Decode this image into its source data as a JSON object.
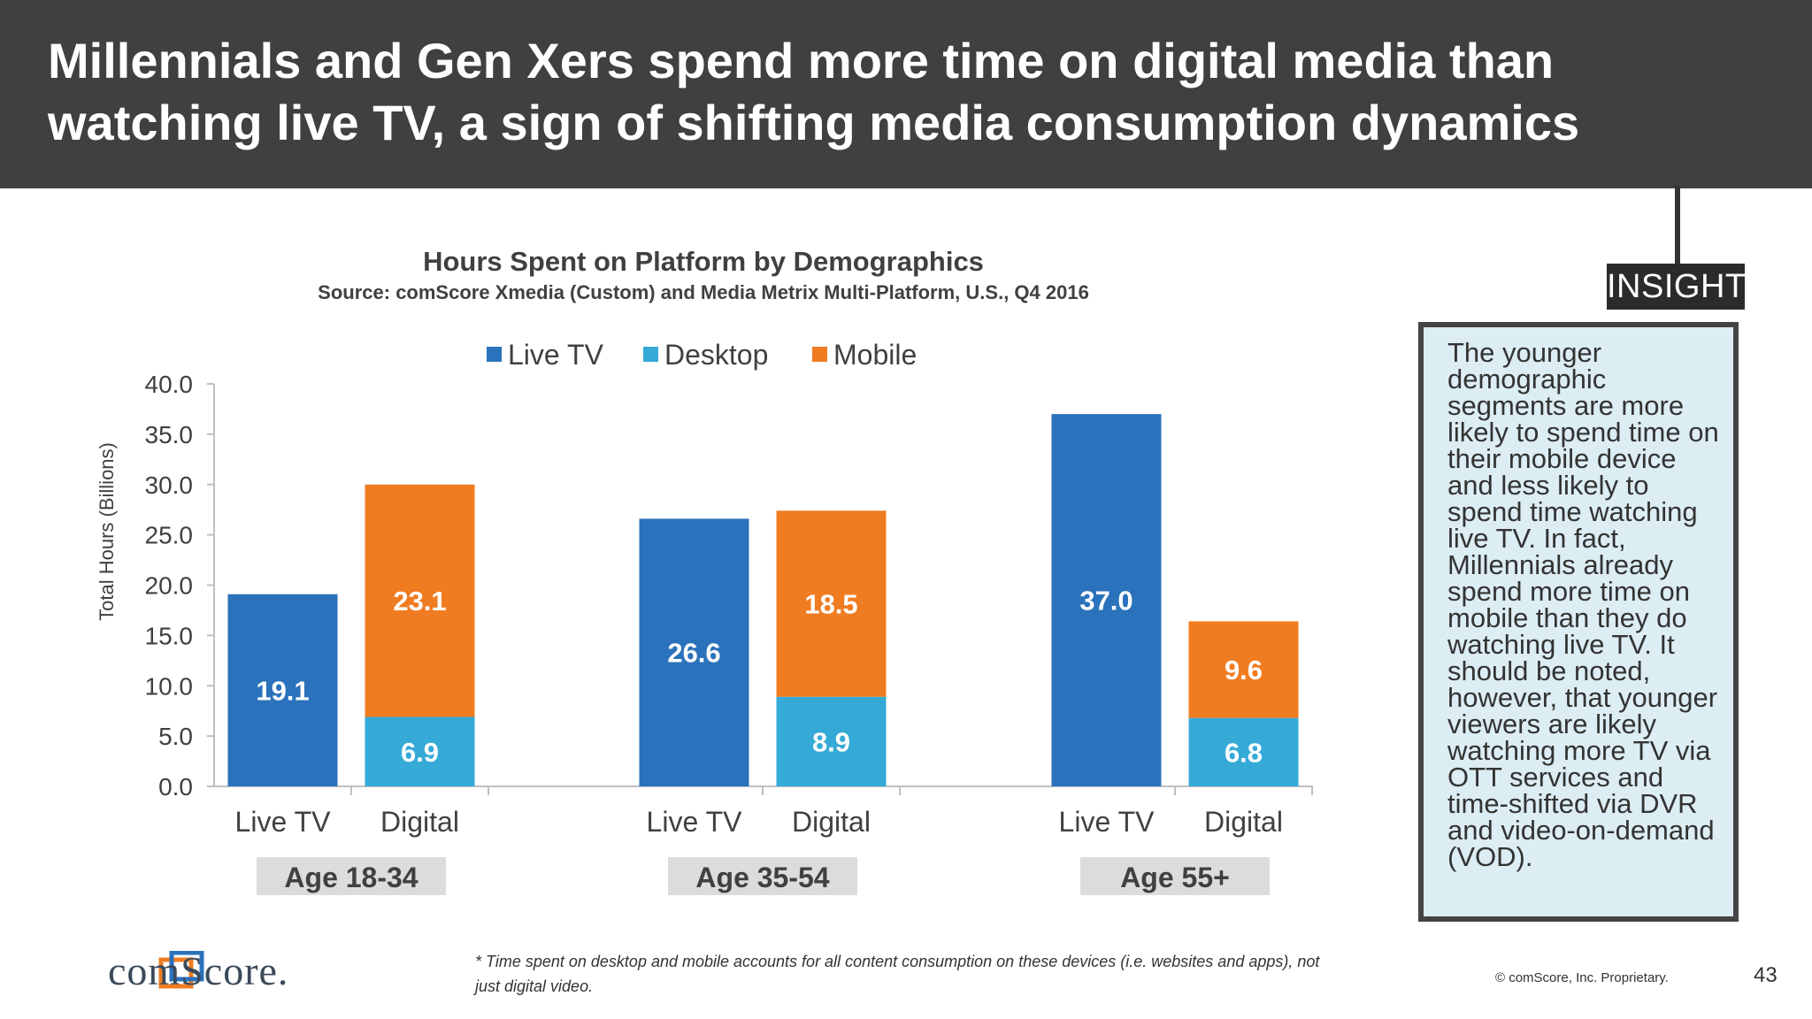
{
  "header": {
    "title_line1": "Millennials and Gen Xers spend more time on digital media than",
    "title_line2": "watching live TV, a sign of shifting media consumption dynamics"
  },
  "colors": {
    "header_bg": "#404040",
    "live_tv": "#2a72bb",
    "desktop": "#35aad7",
    "mobile": "#f07c22",
    "insight_bg": "#dcedf3",
    "group_label_bg": "#dcdcdc"
  },
  "chart_data": {
    "type": "bar",
    "stacked": true,
    "title": "Hours Spent on Platform by Demographics",
    "subtitle": "Source: comScore Xmedia (Custom) and Media Metrix Multi-Platform, U.S., Q4 2016",
    "ylabel": "Total Hours (Billions)",
    "ylim": [
      0,
      40
    ],
    "yticks": [
      "0.0",
      "5.0",
      "10.0",
      "15.0",
      "20.0",
      "25.0",
      "30.0",
      "35.0",
      "40.0"
    ],
    "legend": [
      "Live TV",
      "Desktop",
      "Mobile"
    ],
    "legend_position": "top-center",
    "groups": [
      {
        "label": "Age 18-34",
        "bars": [
          {
            "category": "Live TV",
            "segments": [
              {
                "series": "Live TV",
                "value": 19.1
              }
            ]
          },
          {
            "category": "Digital",
            "segments": [
              {
                "series": "Desktop",
                "value": 6.9
              },
              {
                "series": "Mobile",
                "value": 23.1
              }
            ]
          }
        ]
      },
      {
        "label": "Age 35-54",
        "bars": [
          {
            "category": "Live TV",
            "segments": [
              {
                "series": "Live TV",
                "value": 26.6
              }
            ]
          },
          {
            "category": "Digital",
            "segments": [
              {
                "series": "Desktop",
                "value": 8.9
              },
              {
                "series": "Mobile",
                "value": 18.5
              }
            ]
          }
        ]
      },
      {
        "label": "Age 55+",
        "bars": [
          {
            "category": "Live TV",
            "segments": [
              {
                "series": "Live TV",
                "value": 37.0
              }
            ]
          },
          {
            "category": "Digital",
            "segments": [
              {
                "series": "Desktop",
                "value": 6.8
              },
              {
                "series": "Mobile",
                "value": 9.6
              }
            ]
          }
        ]
      }
    ]
  },
  "insight": {
    "tag": "INSIGHT",
    "text": "The younger demographic segments are more likely to spend time on their mobile device and less likely to spend time watching live TV. In fact, Millennials already spend more time on mobile than they do watching live TV. It should be noted, however, that younger viewers are likely watching more TV via OTT services and time-shifted via DVR and video-on-demand (VOD)."
  },
  "footer": {
    "logo_text": "comScore.",
    "footnote": "* Time spent on desktop and mobile accounts for all content consumption on these devices (i.e. websites and apps), not just digital video.",
    "copyright": "© comScore, Inc. Proprietary.",
    "page_number": "43"
  }
}
